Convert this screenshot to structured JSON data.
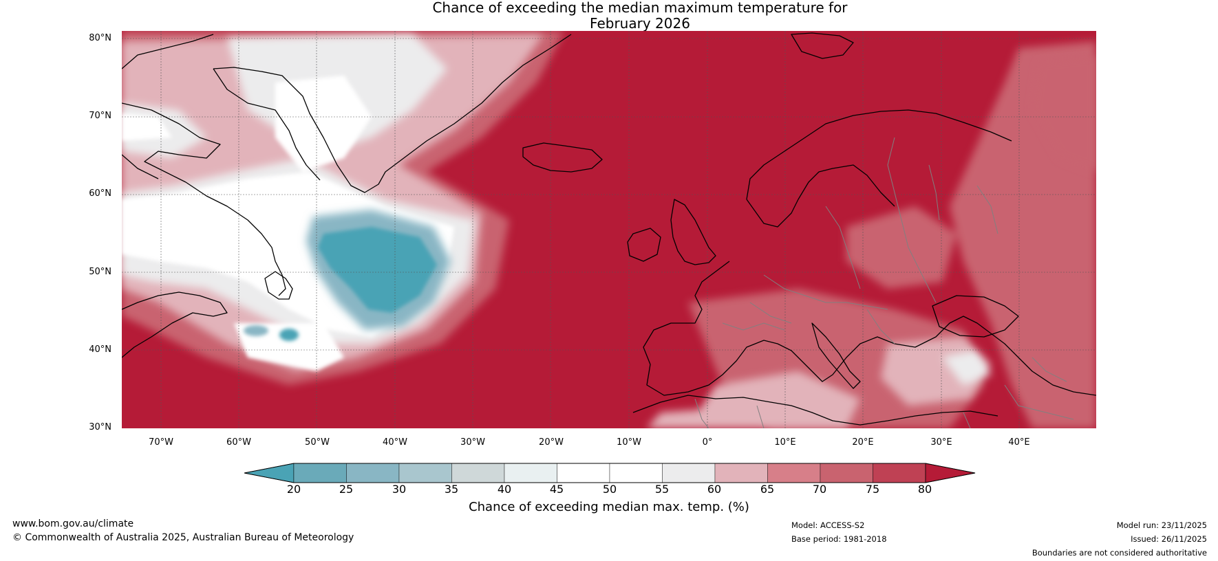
{
  "title": {
    "line1": "Chance of exceeding the median maximum temperature for",
    "line2": "February 2026"
  },
  "map": {
    "lat_labels": [
      "80°N",
      "70°N",
      "60°N",
      "50°N",
      "40°N",
      "30°N"
    ],
    "lon_labels": [
      "70°W",
      "60°W",
      "50°W",
      "40°W",
      "30°W",
      "20°W",
      "10°W",
      "0°",
      "10°E",
      "20°E",
      "30°E",
      "40°E"
    ],
    "extent": {
      "lon_min": -75,
      "lon_max": 50,
      "lat_min": 30,
      "lat_max": 81
    }
  },
  "colorbar": {
    "ticks": [
      "20",
      "25",
      "30",
      "35",
      "40",
      "45",
      "50",
      "55",
      "60",
      "65",
      "70",
      "75",
      "80"
    ],
    "colors": [
      "#4aa3b5",
      "#6aaab9",
      "#89b6c4",
      "#a9c6ce",
      "#cfd8d9",
      "#e9f0f1",
      "#ffffff",
      "#ffffff",
      "#ececed",
      "#e2b3ba",
      "#d77f89",
      "#c9636f",
      "#bf4154",
      "#b51b37"
    ],
    "title": "Chance of exceeding median max. temp. (%)"
  },
  "colors": {
    "hot": "#b51b37",
    "warm": "#c9636f",
    "warm_light": "#e2b3ba",
    "neutral": "#ececed",
    "cool": "#4aa3b5",
    "cool_light": "#89b6c4",
    "coast": "#000000",
    "border": "#808080"
  },
  "footer": {
    "website": "www.bom.gov.au/climate",
    "copyright": "© Commonwealth of Australia 2025, Australian Bureau of Meteorology",
    "model": "Model: ACCESS-S2",
    "base_period": "Base period: 1981-2018",
    "model_run": "Model run: 23/11/2025",
    "issued": "Issued: 26/11/2025",
    "disclaimer": "Boundaries are not considered authoritative"
  }
}
